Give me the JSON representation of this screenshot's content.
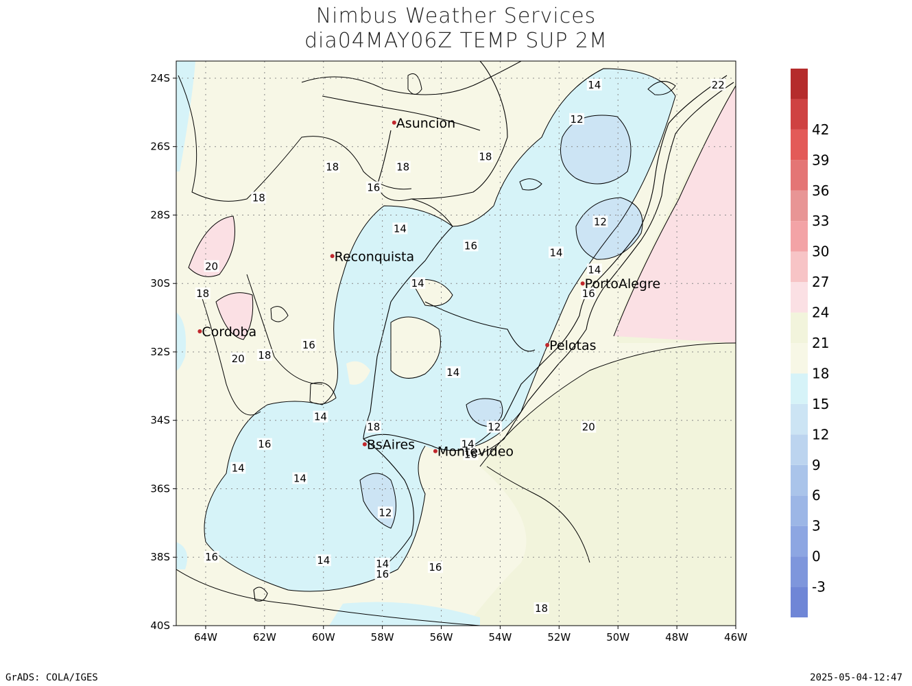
{
  "header": {
    "title": "Nimbus Weather Services",
    "subtitle": "dia04MAY06Z TEMP SUP 2M"
  },
  "footer": {
    "left": "GrADS: COLA/IGES",
    "right": "2025-05-04-12:47"
  },
  "map": {
    "lat_range": [
      -40,
      -23.5
    ],
    "lon_range": [
      -65,
      -46
    ],
    "lat_ticks": [
      {
        "label": "24S",
        "value": -24
      },
      {
        "label": "26S",
        "value": -26
      },
      {
        "label": "28S",
        "value": -28
      },
      {
        "label": "30S",
        "value": -30
      },
      {
        "label": "32S",
        "value": -32
      },
      {
        "label": "34S",
        "value": -34
      },
      {
        "label": "36S",
        "value": -36
      },
      {
        "label": "38S",
        "value": -38
      },
      {
        "label": "40S",
        "value": -40
      }
    ],
    "lon_ticks": [
      {
        "label": "64W",
        "value": -64
      },
      {
        "label": "62W",
        "value": -62
      },
      {
        "label": "60W",
        "value": -60
      },
      {
        "label": "58W",
        "value": -58
      },
      {
        "label": "56W",
        "value": -56
      },
      {
        "label": "54W",
        "value": -54
      },
      {
        "label": "52W",
        "value": -52
      },
      {
        "label": "50W",
        "value": -50
      },
      {
        "label": "48W",
        "value": -48
      },
      {
        "label": "46W",
        "value": -46
      }
    ],
    "cities": [
      {
        "name": "Asuncion",
        "lon": -57.6,
        "lat": -25.3
      },
      {
        "name": "Reconquista",
        "lon": -59.7,
        "lat": -29.2
      },
      {
        "name": "Cordoba",
        "lon": -64.2,
        "lat": -31.4
      },
      {
        "name": "PortoAlegre",
        "lon": -51.2,
        "lat": -30.0
      },
      {
        "name": "Pelotas",
        "lon": -52.4,
        "lat": -31.8
      },
      {
        "name": "BsAires",
        "lon": -58.6,
        "lat": -34.7
      },
      {
        "name": "Montevideo",
        "lon": -56.2,
        "lat": -34.9
      }
    ],
    "contour_labels": [
      {
        "text": "14",
        "lon": -50.8,
        "lat": -24.2
      },
      {
        "text": "12",
        "lon": -51.4,
        "lat": -25.2
      },
      {
        "text": "22",
        "lon": -46.6,
        "lat": -24.2
      },
      {
        "text": "18",
        "lon": -59.7,
        "lat": -26.6
      },
      {
        "text": "18",
        "lon": -57.3,
        "lat": -26.6
      },
      {
        "text": "18",
        "lon": -54.5,
        "lat": -26.3
      },
      {
        "text": "16",
        "lon": -58.3,
        "lat": -27.2
      },
      {
        "text": "18",
        "lon": -62.2,
        "lat": -27.5
      },
      {
        "text": "14",
        "lon": -57.4,
        "lat": -28.4
      },
      {
        "text": "12",
        "lon": -50.6,
        "lat": -28.2
      },
      {
        "text": "16",
        "lon": -55.0,
        "lat": -28.9
      },
      {
        "text": "14",
        "lon": -52.1,
        "lat": -29.1
      },
      {
        "text": "14",
        "lon": -50.8,
        "lat": -29.6
      },
      {
        "text": "20",
        "lon": -63.8,
        "lat": -29.5
      },
      {
        "text": "14",
        "lon": -56.8,
        "lat": -30.0
      },
      {
        "text": "18",
        "lon": -64.1,
        "lat": -30.3
      },
      {
        "text": "16",
        "lon": -51.0,
        "lat": -30.3
      },
      {
        "text": "16",
        "lon": -60.5,
        "lat": -31.8
      },
      {
        "text": "20",
        "lon": -62.9,
        "lat": -32.2
      },
      {
        "text": "18",
        "lon": -62.0,
        "lat": -32.1
      },
      {
        "text": "14",
        "lon": -55.6,
        "lat": -32.6
      },
      {
        "text": "14",
        "lon": -60.1,
        "lat": -33.9
      },
      {
        "text": "18",
        "lon": -58.3,
        "lat": -34.2
      },
      {
        "text": "12",
        "lon": -54.2,
        "lat": -34.2
      },
      {
        "text": "20",
        "lon": -51.0,
        "lat": -34.2
      },
      {
        "text": "16",
        "lon": -62.0,
        "lat": -34.7
      },
      {
        "text": "14",
        "lon": -55.1,
        "lat": -34.7
      },
      {
        "text": "16",
        "lon": -55.0,
        "lat": -35.0
      },
      {
        "text": "14",
        "lon": -62.9,
        "lat": -35.4
      },
      {
        "text": "14",
        "lon": -60.8,
        "lat": -35.7
      },
      {
        "text": "12",
        "lon": -57.9,
        "lat": -36.7
      },
      {
        "text": "16",
        "lon": -63.8,
        "lat": -38.0
      },
      {
        "text": "14",
        "lon": -60.0,
        "lat": -38.1
      },
      {
        "text": "14",
        "lon": -58.0,
        "lat": -38.2
      },
      {
        "text": "16",
        "lon": -58.0,
        "lat": -38.5
      },
      {
        "text": "16",
        "lon": -56.2,
        "lat": -38.3
      },
      {
        "text": "18",
        "lon": -52.6,
        "lat": -39.5
      }
    ]
  },
  "colorbar": {
    "levels": [
      {
        "label": "",
        "color": "#6f86d6"
      },
      {
        "label": "-3",
        "color": "#7e96dc"
      },
      {
        "label": "0",
        "color": "#8da6e2"
      },
      {
        "label": "3",
        "color": "#9cb6e6"
      },
      {
        "label": "6",
        "color": "#aac4ea"
      },
      {
        "label": "9",
        "color": "#bcd4ef"
      },
      {
        "label": "12",
        "color": "#cce4f4"
      },
      {
        "label": "15",
        "color": "#d6f3f8"
      },
      {
        "label": "18",
        "color": "#f7f7e6"
      },
      {
        "label": "21",
        "color": "#f2f4dc"
      },
      {
        "label": "24",
        "color": "#fbe0e4"
      },
      {
        "label": "27",
        "color": "#f7c4c6"
      },
      {
        "label": "30",
        "color": "#f3a3a6"
      },
      {
        "label": "33",
        "color": "#e89595"
      },
      {
        "label": "36",
        "color": "#e47575"
      },
      {
        "label": "39",
        "color": "#e35a58"
      },
      {
        "label": "42",
        "color": "#cf4242"
      },
      {
        "label": "",
        "color": "#b52c2c"
      }
    ]
  },
  "colors": {
    "cold_fill": "#d6f3f8",
    "colder_fill": "#cce4f4",
    "coldest_fill": "#bcd4ef",
    "mild_fill": "#f7f7e6",
    "warm_fill": "#f2f4dc",
    "hot_fill": "#fbe0e4",
    "city_marker": "#c0282d"
  }
}
